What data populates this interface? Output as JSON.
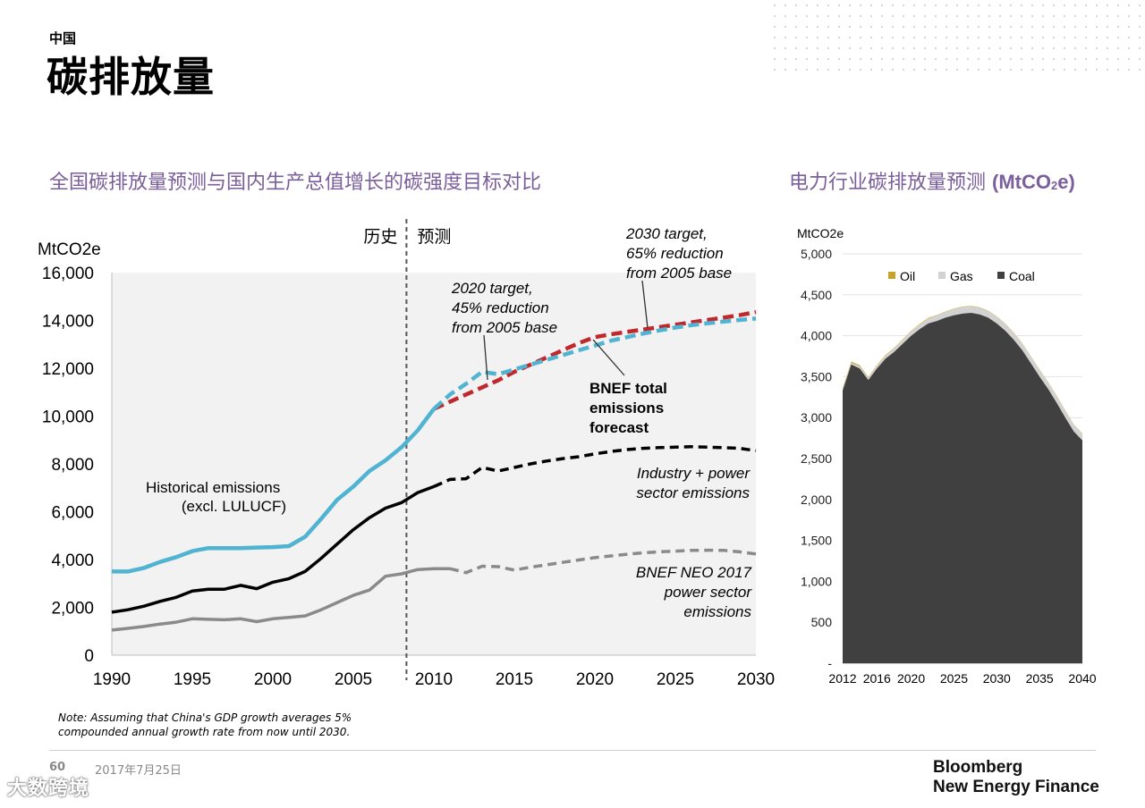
{
  "header": {
    "eyebrow": "中国",
    "title": "碳排放量"
  },
  "left_chart": {
    "subtitle": "全国碳排放量预测与国内生产总值增长的碳强度目标对比",
    "unit_label": "MtCO2e"
  },
  "right_chart": {
    "subtitle_text": "电力行业碳排放量预测",
    "subtitle_unit_pre": "(MtCO",
    "subtitle_unit_sub": "2",
    "subtitle_unit_post": "e)",
    "unit_label": "MtCO2e"
  },
  "footer": {
    "note_line1": "Note: Assuming that China's GDP growth averages 5%",
    "note_line2": "compounded annual growth rate from now until 2030.",
    "page_number": "60",
    "date": "2017年7月25日",
    "brand_line1": "Bloomberg",
    "brand_line2": "New Energy Finance",
    "watermark": "大数跨境"
  },
  "chart_data": [
    {
      "type": "line",
      "ylabel": "MtCO2e",
      "ylim": [
        0,
        16000
      ],
      "xlim": [
        1990,
        2030
      ],
      "x_ticks": [
        1990,
        1995,
        2000,
        2005,
        2010,
        2015,
        2020,
        2025,
        2030
      ],
      "y_ticks": [
        0,
        2000,
        4000,
        6000,
        8000,
        10000,
        12000,
        14000,
        16000
      ],
      "y_tick_labels": [
        "0",
        "2,000",
        "4,000",
        "6,000",
        "8,000",
        "10,000",
        "12,000",
        "14,000",
        "16,000"
      ],
      "divider": {
        "x": 2008.3,
        "left_label": "历史",
        "right_label": "预测"
      },
      "colors": {
        "total": "#4fb3d1",
        "target": "#c0282d",
        "industry": "#000000",
        "power": "#8a8a8a"
      },
      "series": [
        {
          "key": "total",
          "x": [
            1990,
            1991,
            1992,
            1993,
            1994,
            1995,
            1996,
            1997,
            1998,
            1999,
            2000,
            2001,
            2002,
            2003,
            2004,
            2005,
            2006,
            2007,
            2008,
            2009,
            2010
          ],
          "values": [
            3500,
            3500,
            3650,
            3900,
            4100,
            4350,
            4480,
            4480,
            4480,
            4500,
            4520,
            4560,
            4950,
            5700,
            6500,
            7050,
            7700,
            8150,
            8700,
            9400,
            10300
          ]
        },
        {
          "key": "total_forecast",
          "x": [
            2010,
            2011,
            2012,
            2013,
            2014,
            2015,
            2016,
            2017,
            2018,
            2019,
            2020,
            2021,
            2022,
            2023,
            2024,
            2025,
            2026,
            2027,
            2028,
            2029,
            2030
          ],
          "values": [
            10300,
            10900,
            11350,
            11850,
            11750,
            11950,
            12150,
            12350,
            12550,
            12750,
            12950,
            13150,
            13300,
            13450,
            13580,
            13700,
            13800,
            13880,
            13950,
            14020,
            14080
          ]
        },
        {
          "key": "target",
          "x": [
            2010,
            2011,
            2012,
            2013,
            2014,
            2015,
            2016,
            2017,
            2018,
            2019,
            2020,
            2021,
            2022,
            2023,
            2024,
            2025,
            2026,
            2027,
            2028,
            2029,
            2030
          ],
          "values": [
            10300,
            10600,
            10900,
            11200,
            11500,
            11850,
            12150,
            12450,
            12750,
            13050,
            13300,
            13420,
            13520,
            13620,
            13720,
            13820,
            13920,
            14020,
            14120,
            14220,
            14350
          ]
        },
        {
          "key": "industry",
          "x": [
            1990,
            1991,
            1992,
            1993,
            1994,
            1995,
            1996,
            1997,
            1998,
            1999,
            2000,
            2001,
            2002,
            2003,
            2004,
            2005,
            2006,
            2007,
            2008,
            2009,
            2010
          ],
          "values": [
            1800,
            1900,
            2050,
            2250,
            2420,
            2680,
            2760,
            2760,
            2920,
            2780,
            3050,
            3200,
            3500,
            4050,
            4650,
            5250,
            5750,
            6150,
            6380,
            6800,
            7050
          ]
        },
        {
          "key": "industry_forecast",
          "x": [
            2010,
            2011,
            2012,
            2013,
            2014,
            2015,
            2016,
            2017,
            2018,
            2019,
            2020,
            2021,
            2022,
            2023,
            2024,
            2025,
            2026,
            2027,
            2028,
            2029,
            2030
          ],
          "values": [
            7050,
            7350,
            7380,
            7850,
            7700,
            7850,
            8000,
            8120,
            8220,
            8300,
            8420,
            8520,
            8600,
            8650,
            8680,
            8700,
            8720,
            8700,
            8680,
            8650,
            8550
          ]
        },
        {
          "key": "power",
          "x": [
            1990,
            1991,
            1992,
            1993,
            1994,
            1995,
            1996,
            1997,
            1998,
            1999,
            2000,
            2001,
            2002,
            2003,
            2004,
            2005,
            2006,
            2007,
            2008,
            2009,
            2010,
            2011
          ],
          "values": [
            1050,
            1120,
            1200,
            1300,
            1380,
            1520,
            1500,
            1480,
            1520,
            1400,
            1520,
            1580,
            1640,
            1900,
            2200,
            2500,
            2720,
            3300,
            3400,
            3580,
            3620,
            3620
          ]
        },
        {
          "key": "power_forecast",
          "x": [
            2011,
            2012,
            2013,
            2014,
            2015,
            2016,
            2017,
            2018,
            2019,
            2020,
            2021,
            2022,
            2023,
            2024,
            2025,
            2026,
            2027,
            2028,
            2029,
            2030
          ],
          "values": [
            3620,
            3450,
            3720,
            3700,
            3560,
            3680,
            3780,
            3880,
            3980,
            4080,
            4150,
            4220,
            4280,
            4320,
            4350,
            4380,
            4390,
            4380,
            4320,
            4230
          ]
        }
      ],
      "annotations": {
        "historical_line1": "Historical emissions",
        "historical_line2": "(excl. LULUCF)",
        "target2020_line1": "2020 target,",
        "target2020_line2": "45% reduction",
        "target2020_line3": "from 2005 base",
        "target2030_line1": "2030 target,",
        "target2030_line2": "65% reduction",
        "target2030_line3": "from 2005 base",
        "bnef_line1": "BNEF  total",
        "bnef_line2": "emissions",
        "bnef_line3": "forecast",
        "industry_line1": "Industry + power",
        "industry_line2": "sector emissions",
        "neo_line1": "BNEF NEO 2017",
        "neo_line2": "power sector",
        "neo_line3": "emissions"
      }
    },
    {
      "type": "area",
      "ylabel": "MtCO2e",
      "ylim": [
        0,
        5000
      ],
      "y_ticks": [
        0,
        500,
        1000,
        1500,
        2000,
        2500,
        3000,
        3500,
        4000,
        4500,
        5000
      ],
      "y_tick_labels": [
        "-",
        "500",
        "1,000",
        "1,500",
        "2,000",
        "2,500",
        "3,000",
        "3,500",
        "4,000",
        "4,500",
        "5,000"
      ],
      "x_ticks": [
        2012,
        2016,
        2020,
        2025,
        2030,
        2035,
        2040
      ],
      "xlim": [
        2012,
        2040
      ],
      "legend": [
        "Oil",
        "Gas",
        "Coal"
      ],
      "colors": {
        "Oil": "#c9a227",
        "Gas": "#d2d2d2",
        "Coal": "#404040"
      },
      "x": [
        2012,
        2013,
        2014,
        2015,
        2016,
        2017,
        2018,
        2019,
        2020,
        2021,
        2022,
        2023,
        2024,
        2025,
        2026,
        2027,
        2028,
        2029,
        2030,
        2031,
        2032,
        2033,
        2034,
        2035,
        2036,
        2037,
        2038,
        2039,
        2040
      ],
      "series": [
        {
          "name": "Coal",
          "values": [
            3330,
            3650,
            3600,
            3460,
            3600,
            3720,
            3800,
            3900,
            4000,
            4080,
            4150,
            4180,
            4220,
            4250,
            4270,
            4280,
            4260,
            4220,
            4150,
            4060,
            3950,
            3820,
            3660,
            3500,
            3350,
            3180,
            3000,
            2830,
            2720
          ]
        },
        {
          "name": "Gas",
          "values": [
            15,
            20,
            25,
            25,
            30,
            35,
            40,
            45,
            50,
            55,
            60,
            65,
            70,
            75,
            80,
            80,
            80,
            80,
            80,
            80,
            80,
            80,
            80,
            80,
            80,
            80,
            80,
            80,
            80
          ]
        },
        {
          "name": "Oil",
          "values": [
            15,
            15,
            15,
            10,
            10,
            10,
            8,
            8,
            8,
            8,
            8,
            6,
            6,
            6,
            6,
            6,
            6,
            6,
            6,
            6,
            6,
            6,
            6,
            6,
            6,
            6,
            6,
            6,
            6
          ]
        }
      ]
    }
  ]
}
